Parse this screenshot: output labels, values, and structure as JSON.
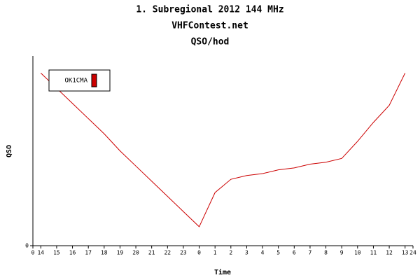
{
  "chart_data": {
    "type": "line",
    "title": "1. Subregional 2012 144 MHz",
    "subtitle": "VHFContest.net",
    "subtitle2": "QSO/hod",
    "x_label": "Time",
    "y_label": "QSO",
    "x": [
      0.5,
      1.5,
      2.5,
      3.5,
      4.5,
      5.5,
      6.5,
      7.5,
      8.5,
      9.5,
      10.5,
      11.5,
      12.5,
      13.5,
      14.5,
      15.5,
      16.5,
      17.5,
      18.5,
      19.5,
      20.5,
      21.5,
      22.5,
      23.5
    ],
    "series": [
      {
        "name": "OK1CMA",
        "color": "#cc0000",
        "values": [
          91,
          83,
          75,
          67,
          59,
          50,
          42,
          34,
          26,
          18,
          10,
          28,
          35,
          37,
          38,
          40,
          41,
          43,
          44,
          46,
          55,
          65,
          74,
          91
        ]
      }
    ],
    "xlim": [
      0,
      24
    ],
    "xticks": [
      0,
      {
        "value": 0.5,
        "label": "14"
      },
      {
        "value": 1.5,
        "label": "15"
      },
      {
        "value": 2.5,
        "label": "16"
      },
      {
        "value": 3.5,
        "label": "17"
      },
      {
        "value": 4.5,
        "label": "18"
      },
      {
        "value": 5.5,
        "label": "19"
      },
      {
        "value": 6.5,
        "label": "20"
      },
      {
        "value": 7.5,
        "label": "21"
      },
      {
        "value": 8.5,
        "label": "22"
      },
      {
        "value": 9.5,
        "label": "23"
      },
      {
        "value": 10.5,
        "label": "0"
      },
      {
        "value": 11.5,
        "label": "1"
      },
      {
        "value": 12.5,
        "label": "2"
      },
      {
        "value": 13.5,
        "label": "3"
      },
      {
        "value": 14.5,
        "label": "4"
      },
      {
        "value": 15.5,
        "label": "5"
      },
      {
        "value": 16.5,
        "label": "6"
      },
      {
        "value": 17.5,
        "label": "7"
      },
      {
        "value": 18.5,
        "label": "8"
      },
      {
        "value": 19.5,
        "label": "9"
      },
      {
        "value": 20.5,
        "label": "10"
      },
      {
        "value": 21.5,
        "label": "11"
      },
      {
        "value": 22.5,
        "label": "12"
      },
      {
        "value": 23.5,
        "label": "13"
      },
      24
    ],
    "ylim": [
      0,
      100
    ],
    "yticks": [
      0
    ],
    "legend": "top-left"
  }
}
